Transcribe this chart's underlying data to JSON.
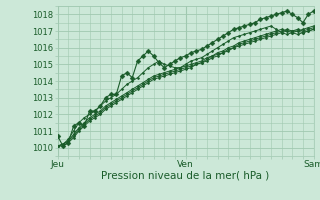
{
  "xlabel": "Pression niveau de la mer( hPa )",
  "xlim": [
    0,
    48
  ],
  "ylim": [
    1009.5,
    1018.5
  ],
  "yticks": [
    1010,
    1011,
    1012,
    1013,
    1014,
    1015,
    1016,
    1017,
    1018
  ],
  "xtick_positions": [
    0,
    24,
    48
  ],
  "xtick_labels": [
    "Jeu",
    "Ven",
    "Sam"
  ],
  "bg_color": "#cce8d8",
  "grid_color": "#a0c8b0",
  "line_color": "#1a5c2a",
  "series": [
    [
      1010.7,
      1010.1,
      1010.3,
      1011.3,
      1011.5,
      1011.3,
      1012.2,
      1012.2,
      1012.5,
      1013.0,
      1013.2,
      1013.2,
      1014.3,
      1014.5,
      1014.2,
      1015.2,
      1015.5,
      1015.8,
      1015.5,
      1015.1,
      1014.8,
      1015.0,
      1015.2,
      1015.4,
      1015.5,
      1015.7,
      1015.8,
      1015.9,
      1016.1,
      1016.3,
      1016.5,
      1016.7,
      1016.9,
      1017.1,
      1017.2,
      1017.3,
      1017.4,
      1017.5,
      1017.7,
      1017.8,
      1017.9,
      1018.0,
      1018.1,
      1018.2,
      1018.0,
      1017.8,
      1017.5,
      1018.0,
      1018.2
    ],
    [
      1010.1,
      1010.2,
      1010.5,
      1011.0,
      1011.5,
      1011.8,
      1012.0,
      1012.2,
      1012.5,
      1012.8,
      1013.0,
      1013.2,
      1013.5,
      1013.8,
      1014.0,
      1014.2,
      1014.5,
      1014.8,
      1015.0,
      1015.2,
      1015.0,
      1014.9,
      1014.8,
      1014.8,
      1015.0,
      1015.2,
      1015.3,
      1015.4,
      1015.6,
      1015.8,
      1016.0,
      1016.2,
      1016.4,
      1016.6,
      1016.7,
      1016.8,
      1016.9,
      1017.0,
      1017.1,
      1017.2,
      1017.3,
      1017.1,
      1016.9,
      1016.8,
      1016.9,
      1017.0,
      1017.1,
      1017.2,
      1017.3
    ],
    [
      1010.1,
      1010.2,
      1010.4,
      1010.8,
      1011.2,
      1011.5,
      1011.8,
      1012.0,
      1012.2,
      1012.5,
      1012.7,
      1012.9,
      1013.1,
      1013.3,
      1013.5,
      1013.7,
      1013.9,
      1014.1,
      1014.3,
      1014.4,
      1014.5,
      1014.6,
      1014.7,
      1014.8,
      1014.9,
      1015.0,
      1015.1,
      1015.2,
      1015.4,
      1015.5,
      1015.7,
      1015.8,
      1016.0,
      1016.1,
      1016.3,
      1016.4,
      1016.5,
      1016.6,
      1016.7,
      1016.8,
      1016.9,
      1017.0,
      1017.1,
      1017.0,
      1016.9,
      1016.8,
      1016.9,
      1017.0,
      1017.1
    ],
    [
      1010.1,
      1010.1,
      1010.3,
      1010.6,
      1011.0,
      1011.3,
      1011.6,
      1011.8,
      1012.0,
      1012.3,
      1012.5,
      1012.7,
      1012.9,
      1013.1,
      1013.3,
      1013.5,
      1013.7,
      1013.9,
      1014.1,
      1014.2,
      1014.3,
      1014.4,
      1014.5,
      1014.6,
      1014.7,
      1014.8,
      1015.0,
      1015.1,
      1015.2,
      1015.4,
      1015.5,
      1015.7,
      1015.8,
      1016.0,
      1016.1,
      1016.2,
      1016.3,
      1016.4,
      1016.5,
      1016.6,
      1016.7,
      1016.8,
      1016.9,
      1017.0,
      1017.0,
      1017.1,
      1017.0,
      1017.1,
      1017.2
    ],
    [
      1010.1,
      1010.2,
      1010.4,
      1010.7,
      1011.1,
      1011.4,
      1011.7,
      1011.9,
      1012.1,
      1012.4,
      1012.6,
      1012.8,
      1013.0,
      1013.2,
      1013.4,
      1013.6,
      1013.8,
      1014.0,
      1014.2,
      1014.3,
      1014.4,
      1014.5,
      1014.6,
      1014.7,
      1014.8,
      1014.9,
      1015.0,
      1015.1,
      1015.3,
      1015.5,
      1015.6,
      1015.7,
      1015.9,
      1016.0,
      1016.2,
      1016.3,
      1016.4,
      1016.5,
      1016.6,
      1016.7,
      1016.8,
      1016.9,
      1017.0,
      1017.1,
      1017.0,
      1017.0,
      1016.9,
      1017.0,
      1017.1
    ]
  ],
  "figsize": [
    3.2,
    2.0
  ],
  "dpi": 100
}
